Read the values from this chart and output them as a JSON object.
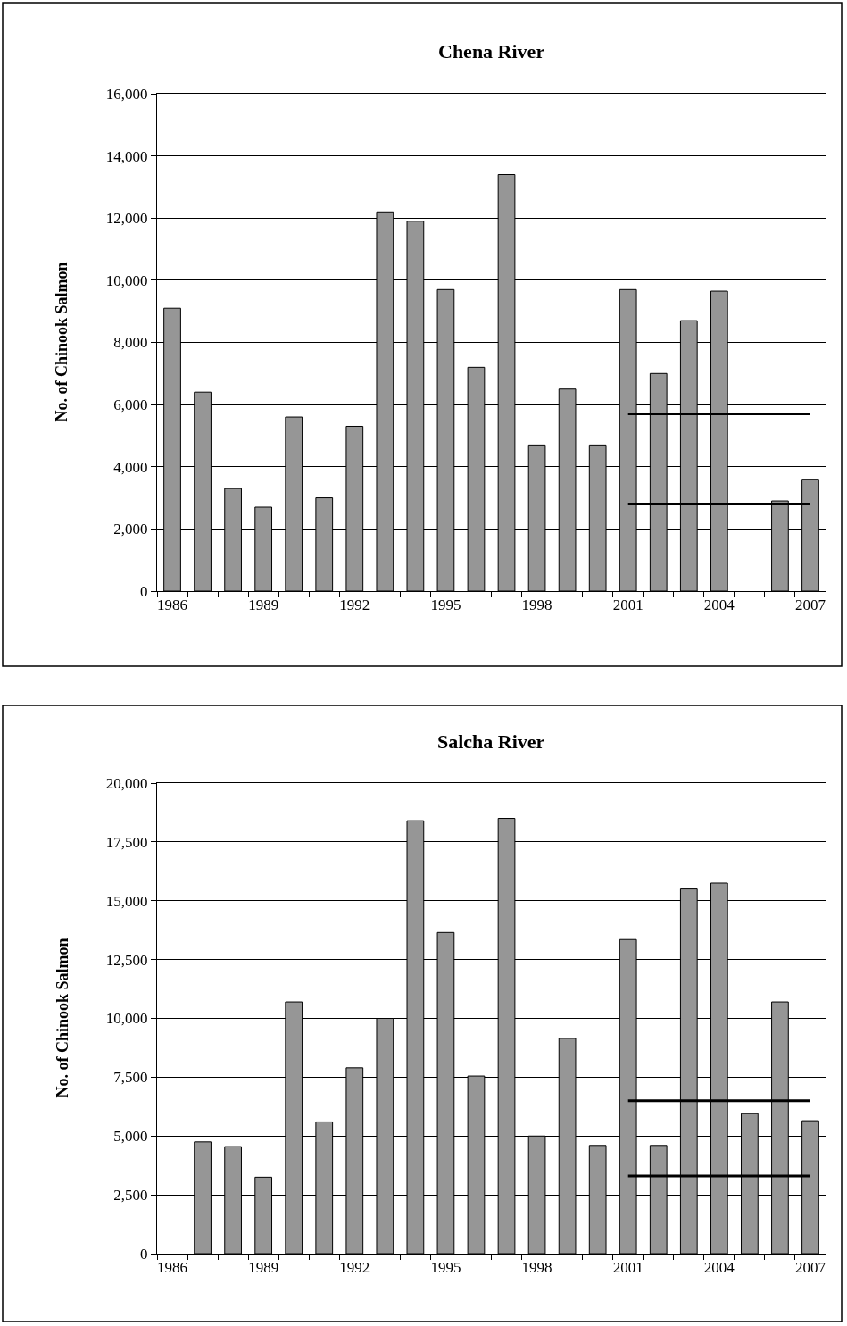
{
  "chart_data": [
    {
      "type": "bar",
      "title": "Chena River",
      "ylabel": "No. of Chinook Salmon",
      "categories": [
        "1986",
        null,
        null,
        "1989",
        null,
        null,
        "1992",
        null,
        null,
        "1995",
        null,
        null,
        "1998",
        null,
        null,
        "2001",
        null,
        null,
        "2004",
        null,
        null,
        "2007"
      ],
      "series": [
        {
          "color": "#969696",
          "values": [
            9100,
            6400,
            3300,
            2700,
            5600,
            3000,
            5300,
            12200,
            11900,
            9700,
            7200,
            13400,
            4700,
            6500,
            4700,
            9700,
            7000,
            8700,
            9650,
            null,
            2900,
            3600
          ]
        },
        {
          "type": "line",
          "color": "#000000",
          "values": [
            null,
            null,
            null,
            null,
            null,
            null,
            null,
            null,
            null,
            null,
            null,
            null,
            null,
            null,
            null,
            5700,
            5700,
            5700,
            5700,
            5700,
            5700,
            5700
          ]
        },
        {
          "type": "line",
          "color": "#000000",
          "values": [
            null,
            null,
            null,
            null,
            null,
            null,
            null,
            null,
            null,
            null,
            null,
            null,
            null,
            null,
            null,
            2800,
            2800,
            2800,
            2800,
            2800,
            2800,
            2800
          ]
        }
      ],
      "ylim": [
        0,
        16000
      ],
      "yticks": [
        0,
        {
          "value": 2000,
          "label": "2,000"
        },
        {
          "value": 4000,
          "label": "4,000"
        },
        {
          "value": 6000,
          "label": "6,000"
        },
        {
          "value": 8000,
          "label": "8,000"
        },
        {
          "value": 10000,
          "label": "10,000"
        },
        {
          "value": 12000,
          "label": "12,000"
        },
        {
          "value": 14000,
          "label": "14,000"
        },
        {
          "value": 16000,
          "label": "16,000"
        }
      ],
      "grid": "y",
      "line_style": "solid"
    },
    {
      "type": "bar",
      "title": "Salcha River",
      "ylabel": "No. of Chinook Salmon",
      "categories": [
        "1986",
        null,
        null,
        "1989",
        null,
        null,
        "1992",
        null,
        null,
        "1995",
        null,
        null,
        "1998",
        null,
        null,
        "2001",
        null,
        null,
        "2004",
        null,
        null,
        "2007"
      ],
      "series": [
        {
          "color": "#969696",
          "values": [
            null,
            4750,
            4550,
            3250,
            10700,
            5600,
            7900,
            10000,
            18400,
            13650,
            7550,
            18500,
            5000,
            9150,
            4600,
            13350,
            4600,
            15500,
            15750,
            5950,
            10700,
            5650
          ]
        },
        {
          "type": "line",
          "color": "#000000",
          "values": [
            null,
            null,
            null,
            null,
            null,
            null,
            null,
            null,
            null,
            null,
            null,
            null,
            null,
            null,
            null,
            6500,
            6500,
            6500,
            6500,
            6500,
            6500,
            6500
          ]
        },
        {
          "type": "line",
          "color": "#000000",
          "values": [
            null,
            null,
            null,
            null,
            null,
            null,
            null,
            null,
            null,
            null,
            null,
            null,
            null,
            null,
            null,
            3300,
            3300,
            3300,
            3300,
            3300,
            3300,
            3300
          ]
        }
      ],
      "ylim": [
        0,
        20000
      ],
      "yticks": [
        0,
        {
          "value": 2500,
          "label": "2,500"
        },
        {
          "value": 5000,
          "label": "5,000"
        },
        {
          "value": 7500,
          "label": "7,500"
        },
        {
          "value": 10000,
          "label": "10,000"
        },
        {
          "value": 12500,
          "label": "12,500"
        },
        {
          "value": 15000,
          "label": "15,000"
        },
        {
          "value": 17500,
          "label": "17,500"
        },
        {
          "value": 20000,
          "label": "20,000"
        }
      ],
      "grid": "y",
      "line_style": "solid"
    }
  ]
}
